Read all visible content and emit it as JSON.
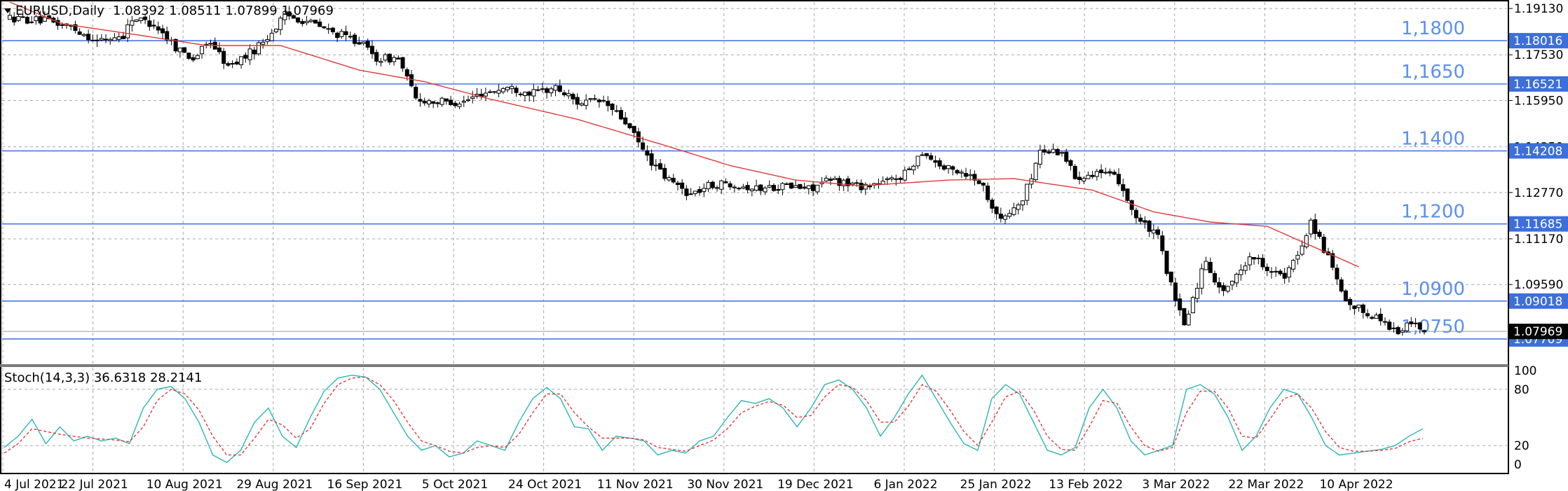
{
  "header": {
    "symbol_label": "EURUSD,Daily",
    "ohlc": "1.08392 1.08511 1.07899 1.07969",
    "indicator_label": "Stoch(14,3,3) 36.6318 28.2141"
  },
  "colors": {
    "background": "#ffffff",
    "candle_up": "#ffffff",
    "candle_down": "#000000",
    "ma_line": "#e03a3a",
    "level_line": "#4a79e8",
    "level_text": "#5b8ff0",
    "level_tag_bg": "#3c6fd9",
    "stoch_main": "#2cb5b5",
    "stoch_signal": "#e03a3a",
    "grid": "#a8a8a8"
  },
  "chart_data": [
    {
      "type": "candlestick",
      "title": "EURUSD,Daily",
      "grid": true,
      "ylim": [
        1.0686,
        1.1935
      ],
      "y_ticks": [
        "1.19130",
        "1.17530",
        "1.15950",
        "1.14350",
        "1.12770",
        "1.11170",
        "1.09590"
      ],
      "x_ticks": [
        "4 Jul 2021",
        "22 Jul 2021",
        "10 Aug 2021",
        "29 Aug 2021",
        "16 Sep 2021",
        "5 Oct 2021",
        "24 Oct 2021",
        "11 Nov 2021",
        "30 Nov 2021",
        "19 Dec 2021",
        "6 Jan 2022",
        "25 Jan 2022",
        "13 Feb 2022",
        "3 Mar 2022",
        "22 Mar 2022",
        "10 Apr 2022"
      ],
      "levels": [
        {
          "label": "1,1800",
          "tag": "1.18016",
          "value": 1.18016
        },
        {
          "label": "1,1650",
          "tag": "1.16521",
          "value": 1.16521
        },
        {
          "label": "1,1400",
          "tag": "1.14208",
          "value": 1.14208
        },
        {
          "label": "1,1200",
          "tag": "1.11685",
          "value": 1.11685
        },
        {
          "label": "1,0900",
          "tag": "1.09018",
          "value": 1.09018
        },
        {
          "label": "1,0750",
          "tag": "1.07709",
          "value": 1.07709
        }
      ],
      "last_price": {
        "tag": "1.07969",
        "value": 1.07969
      },
      "moving_average_anchors": [
        {
          "i": 0,
          "v": 1.1935
        },
        {
          "i": 12,
          "v": 1.186
        },
        {
          "i": 30,
          "v": 1.182
        },
        {
          "i": 45,
          "v": 1.1785
        },
        {
          "i": 62,
          "v": 1.1785
        },
        {
          "i": 80,
          "v": 1.17
        },
        {
          "i": 95,
          "v": 1.166
        },
        {
          "i": 110,
          "v": 1.16
        },
        {
          "i": 130,
          "v": 1.153
        },
        {
          "i": 150,
          "v": 1.144
        },
        {
          "i": 165,
          "v": 1.137
        },
        {
          "i": 180,
          "v": 1.132
        },
        {
          "i": 195,
          "v": 1.13
        },
        {
          "i": 215,
          "v": 1.132
        },
        {
          "i": 230,
          "v": 1.1325
        },
        {
          "i": 248,
          "v": 1.1285
        },
        {
          "i": 262,
          "v": 1.121
        },
        {
          "i": 275,
          "v": 1.1175
        },
        {
          "i": 288,
          "v": 1.116
        },
        {
          "i": 300,
          "v": 1.108
        },
        {
          "i": 309,
          "v": 1.102
        }
      ],
      "price_path": [
        {
          "i": 0,
          "v": 1.188
        },
        {
          "i": 8,
          "v": 1.187
        },
        {
          "i": 14,
          "v": 1.185
        },
        {
          "i": 20,
          "v": 1.18
        },
        {
          "i": 26,
          "v": 1.182
        },
        {
          "i": 28,
          "v": 1.188
        },
        {
          "i": 33,
          "v": 1.186
        },
        {
          "i": 38,
          "v": 1.178
        },
        {
          "i": 42,
          "v": 1.174
        },
        {
          "i": 46,
          "v": 1.18
        },
        {
          "i": 50,
          "v": 1.171
        },
        {
          "i": 56,
          "v": 1.177
        },
        {
          "i": 60,
          "v": 1.183
        },
        {
          "i": 63,
          "v": 1.189
        },
        {
          "i": 68,
          "v": 1.187
        },
        {
          "i": 74,
          "v": 1.183
        },
        {
          "i": 80,
          "v": 1.18
        },
        {
          "i": 84,
          "v": 1.174
        },
        {
          "i": 89,
          "v": 1.174
        },
        {
          "i": 93,
          "v": 1.16
        },
        {
          "i": 98,
          "v": 1.159
        },
        {
          "i": 104,
          "v": 1.159
        },
        {
          "i": 108,
          "v": 1.162
        },
        {
          "i": 114,
          "v": 1.164
        },
        {
          "i": 120,
          "v": 1.162
        },
        {
          "i": 125,
          "v": 1.164
        },
        {
          "i": 130,
          "v": 1.159
        },
        {
          "i": 136,
          "v": 1.159
        },
        {
          "i": 141,
          "v": 1.152
        },
        {
          "i": 146,
          "v": 1.14
        },
        {
          "i": 150,
          "v": 1.133
        },
        {
          "i": 156,
          "v": 1.127
        },
        {
          "i": 160,
          "v": 1.13
        },
        {
          "i": 165,
          "v": 1.131
        },
        {
          "i": 171,
          "v": 1.129
        },
        {
          "i": 177,
          "v": 1.13
        },
        {
          "i": 183,
          "v": 1.129
        },
        {
          "i": 188,
          "v": 1.132
        },
        {
          "i": 195,
          "v": 1.13
        },
        {
          "i": 200,
          "v": 1.131
        },
        {
          "i": 205,
          "v": 1.134
        },
        {
          "i": 209,
          "v": 1.142
        },
        {
          "i": 214,
          "v": 1.136
        },
        {
          "i": 218,
          "v": 1.135
        },
        {
          "i": 222,
          "v": 1.132
        },
        {
          "i": 227,
          "v": 1.118
        },
        {
          "i": 232,
          "v": 1.125
        },
        {
          "i": 236,
          "v": 1.142
        },
        {
          "i": 241,
          "v": 1.142
        },
        {
          "i": 244,
          "v": 1.133
        },
        {
          "i": 249,
          "v": 1.135
        },
        {
          "i": 254,
          "v": 1.132
        },
        {
          "i": 258,
          "v": 1.119
        },
        {
          "i": 263,
          "v": 1.112
        },
        {
          "i": 267,
          "v": 1.09
        },
        {
          "i": 269,
          "v": 1.082
        },
        {
          "i": 274,
          "v": 1.105
        },
        {
          "i": 277,
          "v": 1.094
        },
        {
          "i": 280,
          "v": 1.096
        },
        {
          "i": 284,
          "v": 1.106
        },
        {
          "i": 288,
          "v": 1.102
        },
        {
          "i": 292,
          "v": 1.098
        },
        {
          "i": 295,
          "v": 1.106
        },
        {
          "i": 298,
          "v": 1.118
        },
        {
          "i": 302,
          "v": 1.105
        },
        {
          "i": 306,
          "v": 1.089
        },
        {
          "i": 310,
          "v": 1.087
        },
        {
          "i": 315,
          "v": 1.083
        },
        {
          "i": 318,
          "v": 1.079
        },
        {
          "i": 321,
          "v": 1.083
        },
        {
          "i": 324,
          "v": 1.0797
        }
      ]
    },
    {
      "type": "line",
      "title": "Stoch(14,3,3) 36.6318 28.2141",
      "ylim": [
        0,
        100
      ],
      "y_ticks": [
        100,
        80,
        20,
        0
      ],
      "series": [
        {
          "values": [
            18,
            30,
            48,
            22,
            40,
            25,
            30,
            25,
            28,
            22,
            60,
            80,
            83,
            70,
            45,
            10,
            2,
            15,
            45,
            60,
            30,
            18,
            50,
            78,
            92,
            95,
            93,
            80,
            55,
            30,
            15,
            20,
            8,
            12,
            25,
            20,
            15,
            45,
            70,
            82,
            70,
            40,
            38,
            15,
            30,
            28,
            25,
            10,
            15,
            12,
            25,
            30,
            50,
            68,
            65,
            70,
            60,
            40,
            60,
            85,
            90,
            80,
            60,
            30,
            50,
            75,
            95,
            70,
            45,
            22,
            15,
            70,
            85,
            75,
            45,
            15,
            10,
            18,
            60,
            80,
            60,
            25,
            10,
            15,
            20,
            80,
            85,
            75,
            50,
            15,
            30,
            60,
            80,
            75,
            50,
            20,
            10,
            12,
            14,
            16,
            20,
            30,
            38
          ]
        },
        {
          "values": [
            12,
            22,
            38,
            35,
            32,
            30,
            28,
            27,
            26,
            24,
            40,
            68,
            80,
            75,
            58,
            30,
            10,
            10,
            28,
            48,
            42,
            28,
            38,
            65,
            85,
            92,
            93,
            85,
            68,
            45,
            25,
            20,
            14,
            12,
            18,
            20,
            18,
            32,
            55,
            75,
            75,
            55,
            40,
            28,
            28,
            28,
            26,
            18,
            16,
            14,
            20,
            26,
            38,
            55,
            62,
            67,
            63,
            50,
            52,
            72,
            85,
            82,
            68,
            45,
            45,
            62,
            85,
            78,
            58,
            35,
            20,
            45,
            72,
            78,
            58,
            30,
            16,
            15,
            40,
            68,
            65,
            40,
            20,
            14,
            18,
            55,
            78,
            78,
            60,
            30,
            28,
            48,
            70,
            75,
            60,
            35,
            18,
            14,
            14,
            15,
            17,
            24,
            28
          ]
        }
      ]
    }
  ]
}
